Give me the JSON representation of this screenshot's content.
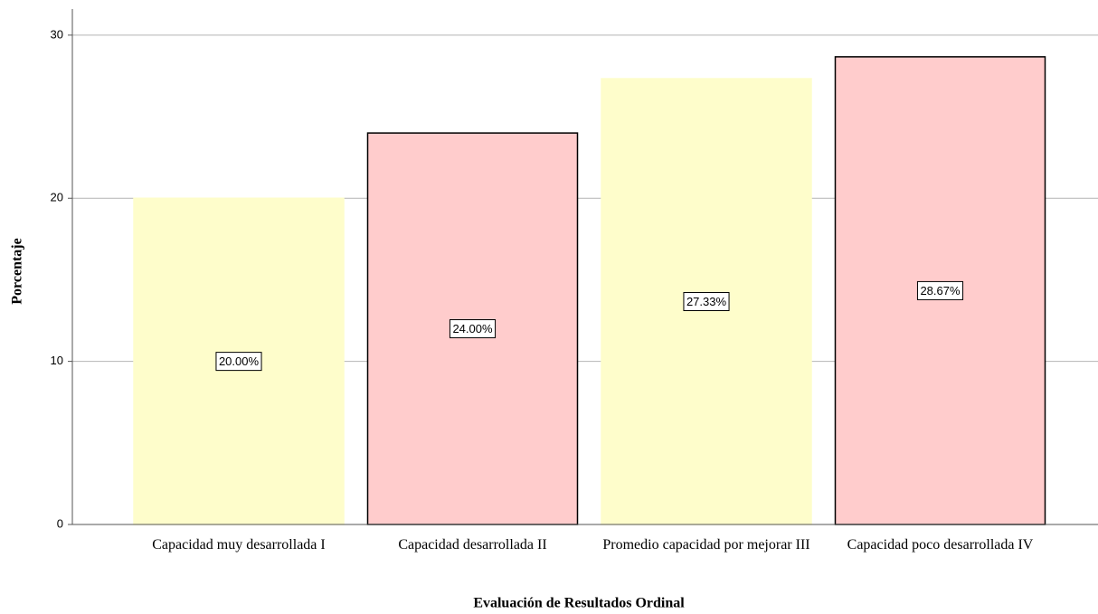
{
  "chart_data": {
    "type": "bar",
    "x_label": "Evaluación de Resultados Ordinal",
    "y_label": "Porcentaje",
    "categories": [
      "Capacidad muy desarrollada I",
      "Capacidad desarrollada II",
      "Promedio capacidad por mejorar III",
      "Capacidad poco desarrollada IV"
    ],
    "values": [
      20,
      24,
      27.33,
      28.67
    ],
    "value_labels": [
      "20.00%",
      "24.00%",
      "27.33%",
      "28.67%"
    ],
    "colors": [
      "#fefdcb",
      "#ffcccc",
      "#fefdcb",
      "#ffcccc"
    ],
    "edgecolors": [
      "#fefdcb",
      "#000000",
      "#fefdcb",
      "#000000"
    ],
    "ylim": [
      0,
      31.6
    ],
    "yticks": [
      0,
      10,
      20,
      30
    ],
    "grid": true
  }
}
